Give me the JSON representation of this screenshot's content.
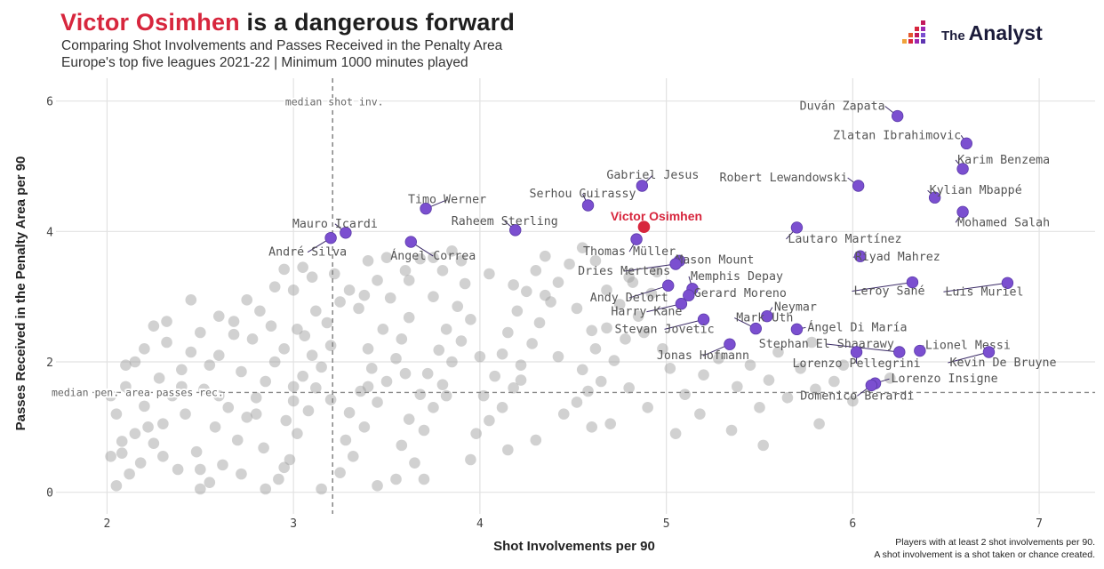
{
  "header": {
    "title_highlight": "Victor Osimhen",
    "title_rest": " is a dangerous forward",
    "subtitle_1": "Comparing Shot Involvements and Passes Received in the Penalty Area",
    "subtitle_2": "Europe's top five leagues 2021-22 | Minimum 1000 minutes played"
  },
  "brand": {
    "prefix": "The",
    "name": "Analyst"
  },
  "footnote": {
    "line_1": "Players with at least 2 shot involvements per 90.",
    "line_2": "A shot involvement is a shot taken or chance created."
  },
  "colors": {
    "accent": "#d7263d",
    "highlight_point": "#7b4fd0",
    "background_point": "#9a9a9a",
    "grid": "#e2e2e2"
  },
  "chart_data": {
    "type": "scatter",
    "xlabel": "Shot Involvements per 90",
    "ylabel": "Passes Received in the Penalty Area per 90",
    "xlim": [
      1.75,
      7.3
    ],
    "ylim": [
      -0.25,
      6.35
    ],
    "xticks": [
      2,
      3,
      4,
      5,
      6,
      7
    ],
    "yticks": [
      0,
      2,
      4,
      6
    ],
    "grid": true,
    "reference_lines": [
      {
        "axis": "x",
        "value": 3.21,
        "label": "median shot inv."
      },
      {
        "axis": "y",
        "value": 1.53,
        "label": "median pen. area passes rec."
      }
    ],
    "featured": {
      "name": "Victor Osimhen",
      "x": 4.88,
      "y": 4.07
    },
    "labeled_players": [
      {
        "name": "Duván Zapata",
        "x": 6.24,
        "y": 5.77
      },
      {
        "name": "Zlatan Ibrahimovic",
        "x": 6.61,
        "y": 5.35
      },
      {
        "name": "Karim Benzema",
        "x": 6.59,
        "y": 4.96
      },
      {
        "name": "Robert Lewandowski",
        "x": 6.03,
        "y": 4.7
      },
      {
        "name": "Kylian Mbappé",
        "x": 6.44,
        "y": 4.52
      },
      {
        "name": "Mohamed Salah",
        "x": 6.59,
        "y": 4.3
      },
      {
        "name": "Gabriel Jesus",
        "x": 4.87,
        "y": 4.7
      },
      {
        "name": "Serhou Guirassy",
        "x": 4.58,
        "y": 4.4
      },
      {
        "name": "Timo Werner",
        "x": 3.71,
        "y": 4.35
      },
      {
        "name": "Raheem Sterling",
        "x": 4.19,
        "y": 4.02
      },
      {
        "name": "Mauro Icardi",
        "x": 3.28,
        "y": 3.98
      },
      {
        "name": "André Silva",
        "x": 3.2,
        "y": 3.9
      },
      {
        "name": "Ángel Correa",
        "x": 3.63,
        "y": 3.84
      },
      {
        "name": "Thomas Müller",
        "x": 4.84,
        "y": 3.88
      },
      {
        "name": "Lautaro Martínez",
        "x": 5.7,
        "y": 4.06
      },
      {
        "name": "Mason Mount",
        "x": 5.07,
        "y": 3.55
      },
      {
        "name": "Riyad Mahrez",
        "x": 6.04,
        "y": 3.62
      },
      {
        "name": "Dries Mertens",
        "x": 5.05,
        "y": 3.5
      },
      {
        "name": "Memphis Depay",
        "x": 5.14,
        "y": 3.12
      },
      {
        "name": "Leroy Sané",
        "x": 6.32,
        "y": 3.22
      },
      {
        "name": "Luis Muriel",
        "x": 6.83,
        "y": 3.21
      },
      {
        "name": "Gerard Moreno",
        "x": 5.12,
        "y": 3.02
      },
      {
        "name": "Andy Delort",
        "x": 5.01,
        "y": 3.17
      },
      {
        "name": "Harry Kane",
        "x": 5.08,
        "y": 2.89
      },
      {
        "name": "Neymar",
        "x": 5.54,
        "y": 2.7
      },
      {
        "name": "Stevan Jovetic",
        "x": 5.2,
        "y": 2.65
      },
      {
        "name": "Ángel Di María",
        "x": 5.7,
        "y": 2.5
      },
      {
        "name": "Mark Uth",
        "x": 5.48,
        "y": 2.51
      },
      {
        "name": "Jonas Hofmann",
        "x": 5.34,
        "y": 2.27
      },
      {
        "name": "Stephan El Shaarawy",
        "x": 6.25,
        "y": 2.15
      },
      {
        "name": "Lionel Messi",
        "x": 6.36,
        "y": 2.17
      },
      {
        "name": "Lorenzo Pellegrini",
        "x": 6.02,
        "y": 2.15
      },
      {
        "name": "Kevin De Bruyne",
        "x": 6.73,
        "y": 2.15
      },
      {
        "name": "Lorenzo Insigne",
        "x": 6.12,
        "y": 1.67
      },
      {
        "name": "Domenico Berardi",
        "x": 6.1,
        "y": 1.64
      }
    ],
    "other_players": [
      [
        2.05,
        0.1
      ],
      [
        2.12,
        0.28
      ],
      [
        2.18,
        0.45
      ],
      [
        2.08,
        0.6
      ],
      [
        2.25,
        0.75
      ],
      [
        2.15,
        0.9
      ],
      [
        2.3,
        1.05
      ],
      [
        2.05,
        1.2
      ],
      [
        2.2,
        1.32
      ],
      [
        2.35,
        1.48
      ],
      [
        2.1,
        1.62
      ],
      [
        2.28,
        1.75
      ],
      [
        2.4,
        1.88
      ],
      [
        2.15,
        2.0
      ],
      [
        2.45,
        2.15
      ],
      [
        2.32,
        2.3
      ],
      [
        2.5,
        2.45
      ],
      [
        2.25,
        2.55
      ],
      [
        2.6,
        2.7
      ],
      [
        2.45,
        2.95
      ],
      [
        2.02,
        0.55
      ],
      [
        2.38,
        0.35
      ],
      [
        2.48,
        0.62
      ],
      [
        2.55,
        0.15
      ],
      [
        2.62,
        0.42
      ],
      [
        2.7,
        0.8
      ],
      [
        2.58,
        1.0
      ],
      [
        2.75,
        1.15
      ],
      [
        2.65,
        1.3
      ],
      [
        2.8,
        1.45
      ],
      [
        2.52,
        1.58
      ],
      [
        2.85,
        1.7
      ],
      [
        2.72,
        1.85
      ],
      [
        2.9,
        2.0
      ],
      [
        2.6,
        2.1
      ],
      [
        2.95,
        2.2
      ],
      [
        2.78,
        2.35
      ],
      [
        2.88,
        2.55
      ],
      [
        2.68,
        2.62
      ],
      [
        2.82,
        2.78
      ],
      [
        2.92,
        0.2
      ],
      [
        2.98,
        0.5
      ],
      [
        2.84,
        0.68
      ],
      [
        3.02,
        0.9
      ],
      [
        2.96,
        1.1
      ],
      [
        3.08,
        1.25
      ],
      [
        3.0,
        1.4
      ],
      [
        3.12,
        1.6
      ],
      [
        3.05,
        1.78
      ],
      [
        3.15,
        1.92
      ],
      [
        3.1,
        2.1
      ],
      [
        3.2,
        2.25
      ],
      [
        3.06,
        2.4
      ],
      [
        3.18,
        2.6
      ],
      [
        3.12,
        2.78
      ],
      [
        3.25,
        2.92
      ],
      [
        3.0,
        3.1
      ],
      [
        3.1,
        3.3
      ],
      [
        2.95,
        3.42
      ],
      [
        3.02,
        2.5
      ],
      [
        3.25,
        0.3
      ],
      [
        3.32,
        0.55
      ],
      [
        3.28,
        0.8
      ],
      [
        3.38,
        1.0
      ],
      [
        3.3,
        1.22
      ],
      [
        3.45,
        1.38
      ],
      [
        3.36,
        1.55
      ],
      [
        3.5,
        1.7
      ],
      [
        3.42,
        1.9
      ],
      [
        3.55,
        2.05
      ],
      [
        3.4,
        2.2
      ],
      [
        3.58,
        2.35
      ],
      [
        3.48,
        2.5
      ],
      [
        3.62,
        2.68
      ],
      [
        3.35,
        2.82
      ],
      [
        3.52,
        2.98
      ],
      [
        3.3,
        3.1
      ],
      [
        3.45,
        3.25
      ],
      [
        3.6,
        3.4
      ],
      [
        3.4,
        3.55
      ],
      [
        3.55,
        0.2
      ],
      [
        3.65,
        0.45
      ],
      [
        3.58,
        0.72
      ],
      [
        3.7,
        0.95
      ],
      [
        3.62,
        1.12
      ],
      [
        3.75,
        1.3
      ],
      [
        3.68,
        1.5
      ],
      [
        3.8,
        1.65
      ],
      [
        3.72,
        1.82
      ],
      [
        3.85,
        2.0
      ],
      [
        3.78,
        2.18
      ],
      [
        3.9,
        2.32
      ],
      [
        3.82,
        2.5
      ],
      [
        3.95,
        2.65
      ],
      [
        3.88,
        2.85
      ],
      [
        3.75,
        3.0
      ],
      [
        3.92,
        3.2
      ],
      [
        3.8,
        3.4
      ],
      [
        3.68,
        3.58
      ],
      [
        3.85,
        3.7
      ],
      [
        3.98,
        0.9
      ],
      [
        4.05,
        1.1
      ],
      [
        4.12,
        1.3
      ],
      [
        4.02,
        1.48
      ],
      [
        4.18,
        1.6
      ],
      [
        4.08,
        1.78
      ],
      [
        4.22,
        1.95
      ],
      [
        4.12,
        2.12
      ],
      [
        4.28,
        2.28
      ],
      [
        4.15,
        2.45
      ],
      [
        4.32,
        2.6
      ],
      [
        4.2,
        2.78
      ],
      [
        4.38,
        2.92
      ],
      [
        4.25,
        3.08
      ],
      [
        4.42,
        3.22
      ],
      [
        4.3,
        3.4
      ],
      [
        4.48,
        3.5
      ],
      [
        4.35,
        3.62
      ],
      [
        4.55,
        3.75
      ],
      [
        4.62,
        3.55
      ],
      [
        4.45,
        1.2
      ],
      [
        4.52,
        1.38
      ],
      [
        4.58,
        1.55
      ],
      [
        4.65,
        1.7
      ],
      [
        4.55,
        1.88
      ],
      [
        4.72,
        2.02
      ],
      [
        4.62,
        2.2
      ],
      [
        4.78,
        2.35
      ],
      [
        4.68,
        2.52
      ],
      [
        4.85,
        2.7
      ],
      [
        4.75,
        2.88
      ],
      [
        4.92,
        3.05
      ],
      [
        4.82,
        3.22
      ],
      [
        4.95,
        3.38
      ],
      [
        4.88,
        2.45
      ],
      [
        4.98,
        2.2
      ],
      [
        5.02,
        1.9
      ],
      [
        4.8,
        1.6
      ],
      [
        4.9,
        1.3
      ],
      [
        4.7,
        1.05
      ],
      [
        5.1,
        1.5
      ],
      [
        5.2,
        1.8
      ],
      [
        5.28,
        2.05
      ],
      [
        5.38,
        1.62
      ],
      [
        5.45,
        1.95
      ],
      [
        5.55,
        1.72
      ],
      [
        5.6,
        2.15
      ],
      [
        5.72,
        1.9
      ],
      [
        5.5,
        1.3
      ],
      [
        5.35,
        0.95
      ],
      [
        5.18,
        1.2
      ],
      [
        5.65,
        1.45
      ],
      [
        5.8,
        1.58
      ],
      [
        5.9,
        1.7
      ],
      [
        5.95,
        1.95
      ],
      [
        5.78,
        2.3
      ],
      [
        5.52,
        0.72
      ],
      [
        5.82,
        1.05
      ],
      [
        6.2,
        1.75
      ],
      [
        6.0,
        1.4
      ],
      [
        5.05,
        0.9
      ],
      [
        4.6,
        1.0
      ],
      [
        4.3,
        0.8
      ],
      [
        4.15,
        0.65
      ],
      [
        3.95,
        0.5
      ],
      [
        3.7,
        0.2
      ],
      [
        3.45,
        0.1
      ],
      [
        3.15,
        0.05
      ],
      [
        2.85,
        0.05
      ],
      [
        2.5,
        0.05
      ],
      [
        2.02,
        1.48
      ],
      [
        2.1,
        1.95
      ],
      [
        2.2,
        2.2
      ],
      [
        2.32,
        2.62
      ],
      [
        2.42,
        1.2
      ],
      [
        2.55,
        1.95
      ],
      [
        2.68,
        2.42
      ],
      [
        2.75,
        2.95
      ],
      [
        2.9,
        3.15
      ],
      [
        3.05,
        3.45
      ],
      [
        3.22,
        3.35
      ],
      [
        3.38,
        3.02
      ],
      [
        3.5,
        3.6
      ],
      [
        3.62,
        3.25
      ],
      [
        3.75,
        3.6
      ],
      [
        3.9,
        3.55
      ],
      [
        4.05,
        3.35
      ],
      [
        4.18,
        3.18
      ],
      [
        4.35,
        3.02
      ],
      [
        4.52,
        2.82
      ],
      [
        4.68,
        3.1
      ],
      [
        4.8,
        3.3
      ],
      [
        4.6,
        2.48
      ],
      [
        4.42,
        2.08
      ],
      [
        4.22,
        1.72
      ],
      [
        4.0,
        2.08
      ],
      [
        3.82,
        1.48
      ],
      [
        3.6,
        1.82
      ],
      [
        3.4,
        1.62
      ],
      [
        3.2,
        1.42
      ],
      [
        3.0,
        1.62
      ],
      [
        2.8,
        1.2
      ],
      [
        2.6,
        1.48
      ],
      [
        2.4,
        1.62
      ],
      [
        2.22,
        1.0
      ],
      [
        2.08,
        0.78
      ],
      [
        2.3,
        0.55
      ],
      [
        2.5,
        0.35
      ],
      [
        2.72,
        0.28
      ],
      [
        2.95,
        0.38
      ]
    ]
  }
}
